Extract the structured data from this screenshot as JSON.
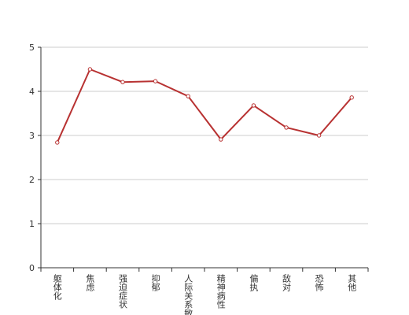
{
  "chart_data": {
    "type": "line",
    "categories": [
      "躯体化",
      "焦虑",
      "强迫症状",
      "抑郁",
      "人际关系敏感",
      "精神病性",
      "偏执",
      "敌对",
      "恐怖",
      "其他"
    ],
    "series": [
      {
        "color": "#b83232",
        "values": [
          2.84,
          4.5,
          4.21,
          4.23,
          3.89,
          2.91,
          3.68,
          3.18,
          3.0,
          3.86
        ]
      }
    ],
    "ylim": [
      0,
      5
    ],
    "yticks": [
      0,
      1,
      2,
      3,
      4,
      5
    ],
    "grid": true
  }
}
